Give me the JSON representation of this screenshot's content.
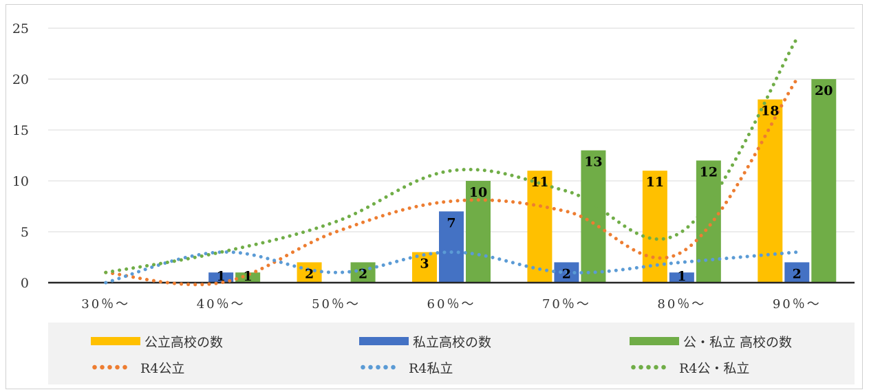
{
  "chart_data": {
    "type": "bar",
    "categories": [
      "30％～",
      "40％～",
      "50％～",
      "60％～",
      "70％～",
      "80％～",
      "90％～"
    ],
    "ylim": [
      0,
      25
    ],
    "yticks": [
      0,
      5,
      10,
      15,
      20,
      25
    ],
    "grid": true,
    "legend_position": "bottom",
    "series": [
      {
        "name": "公立高校の数",
        "kind": "bar",
        "color": "#FFC000",
        "values": [
          0,
          0,
          2,
          3,
          11,
          11,
          18
        ]
      },
      {
        "name": "私立高校の数",
        "kind": "bar",
        "color": "#4472C4",
        "values": [
          0,
          1,
          0,
          7,
          2,
          1,
          2
        ]
      },
      {
        "name": "公・私立 高校の数",
        "kind": "bar",
        "color": "#70AD47",
        "values": [
          0,
          1,
          2,
          10,
          13,
          12,
          20
        ]
      },
      {
        "name": "R4公立",
        "kind": "dotted-line",
        "color": "#ED7D31",
        "values": [
          1,
          0,
          5,
          8,
          7,
          3,
          20
        ]
      },
      {
        "name": "R4私立",
        "kind": "dotted-line",
        "color": "#5B9BD5",
        "values": [
          0,
          3,
          1,
          3,
          1,
          2,
          3
        ]
      },
      {
        "name": "R4公・私立",
        "kind": "dotted-line",
        "color": "#70AD47",
        "values": [
          1,
          3,
          6,
          11,
          9,
          5,
          24
        ]
      }
    ],
    "data_labels": [
      {
        "series": 0,
        "values": [
          null,
          null,
          "2",
          "3",
          "11",
          "11",
          "18"
        ]
      },
      {
        "series": 1,
        "values": [
          null,
          "1",
          null,
          "7",
          "2",
          "1",
          "2"
        ]
      },
      {
        "series": 2,
        "values": [
          null,
          "1",
          "2",
          "10",
          "13",
          "12",
          "20"
        ]
      }
    ]
  }
}
